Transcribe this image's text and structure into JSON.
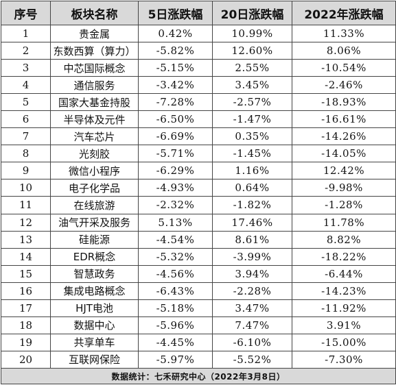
{
  "headers": [
    "序号",
    "板块名称",
    "5日涨跌幅",
    "20日涨跌幅",
    "2022年涨跌幅"
  ],
  "rows": [
    [
      "1",
      "贵金属",
      "0.42%",
      "10.99%",
      "11.33%"
    ],
    [
      "2",
      "东数西算（算力）",
      "-5.82%",
      "12.60%",
      "8.06%"
    ],
    [
      "3",
      "中芯国际概念",
      "-5.15%",
      "2.55%",
      "-10.54%"
    ],
    [
      "4",
      "通信服务",
      "-3.42%",
      "3.45%",
      "-2.46%"
    ],
    [
      "5",
      "国家大基金持股",
      "-7.28%",
      "-2.57%",
      "-18.93%"
    ],
    [
      "6",
      "半导体及元件",
      "-6.50%",
      "-1.47%",
      "-16.61%"
    ],
    [
      "7",
      "汽车芯片",
      "-6.69%",
      "0.35%",
      "-14.26%"
    ],
    [
      "8",
      "光刻胶",
      "-5.71%",
      "-1.45%",
      "-14.05%"
    ],
    [
      "9",
      "微信小程序",
      "-6.29%",
      "1.16%",
      "12.42%"
    ],
    [
      "10",
      "电子化学品",
      "-4.93%",
      "0.64%",
      "-9.98%"
    ],
    [
      "11",
      "在线旅游",
      "-2.32%",
      "-1.82%",
      "-1.28%"
    ],
    [
      "12",
      "油气开采及服务",
      "5.13%",
      "17.46%",
      "11.78%"
    ],
    [
      "13",
      "硅能源",
      "-4.54%",
      "8.61%",
      "8.82%"
    ],
    [
      "14",
      "EDR概念",
      "-5.32%",
      "-3.99%",
      "-18.22%"
    ],
    [
      "15",
      "智慧政务",
      "-4.56%",
      "3.94%",
      "-6.44%"
    ],
    [
      "16",
      "集成电路概念",
      "-6.43%",
      "-2.28%",
      "-14.23%"
    ],
    [
      "17",
      "HJT电池",
      "-5.18%",
      "3.47%",
      "-11.92%"
    ],
    [
      "18",
      "数据中心",
      "-5.96%",
      "7.47%",
      "3.91%"
    ],
    [
      "19",
      "共享单车",
      "-4.45%",
      "-6.10%",
      "-15.00%"
    ],
    [
      "20",
      "互联网保险",
      "-5.97%",
      "-5.52%",
      "-7.30%"
    ]
  ],
  "footer": "数据统计：七禾研究中心（2022年3月8日）",
  "colors": {
    "header_bg": "#d9d9d9",
    "footer_bg": "#d9d9d9",
    "border": "#444444"
  }
}
